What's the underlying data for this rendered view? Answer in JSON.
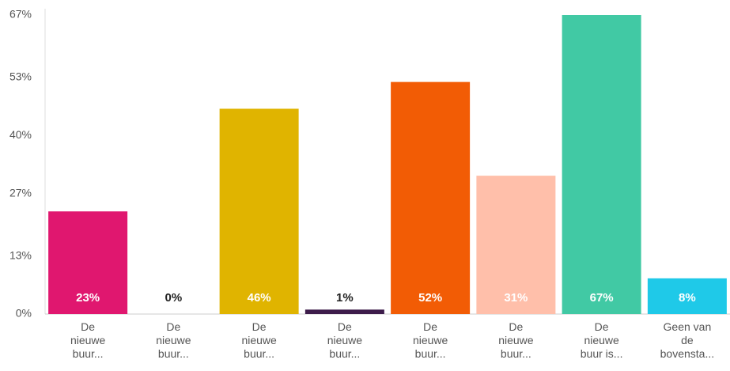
{
  "chart_data": {
    "type": "bar",
    "categories": [
      "De\nnieuwe\nbuur...",
      "De\nnieuwe\nbuur...",
      "De\nnieuwe\nbuur...",
      "De\nnieuwe\nbuur...",
      "De\nnieuwe\nbuur...",
      "De\nnieuwe\nbuur...",
      "De\nnieuwe\nbuur is...",
      "Geen van\nde\nbovensta..."
    ],
    "values": [
      23,
      0,
      46,
      1,
      52,
      31,
      67,
      8
    ],
    "value_labels": [
      "23%",
      "0%",
      "46%",
      "1%",
      "52%",
      "31%",
      "67%",
      "8%"
    ],
    "colors": [
      "#e0176f",
      "#3d1c4b",
      "#e0b400",
      "#3d1c4b",
      "#f25c05",
      "#ffbfaa",
      "#41c9a4",
      "#1fc9e8"
    ],
    "ylim": [
      0,
      67
    ],
    "yticks": [
      {
        "value": 0,
        "label": "0%"
      },
      {
        "value": 13,
        "label": "13%"
      },
      {
        "value": 27,
        "label": "27%"
      },
      {
        "value": 40,
        "label": "40%"
      },
      {
        "value": 53,
        "label": "53%"
      },
      {
        "value": 67,
        "label": "67%"
      }
    ]
  }
}
